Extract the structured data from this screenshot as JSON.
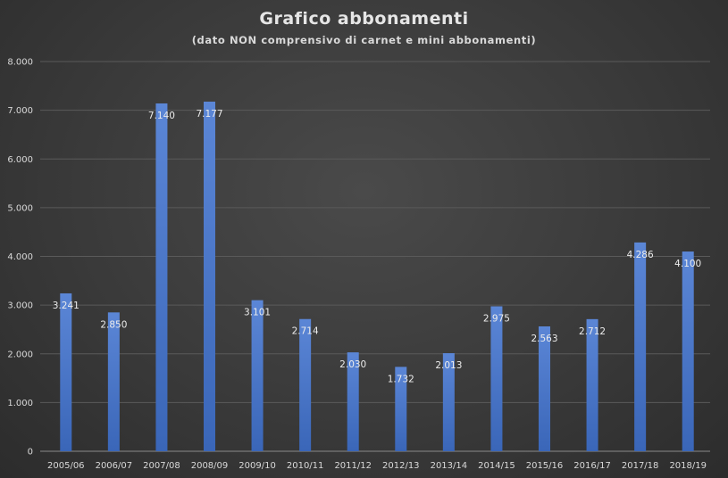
{
  "chart_data": {
    "type": "bar",
    "title": "Grafico abbonamenti",
    "subtitle": "(dato NON comprensivo di carnet e mini abbonamenti)",
    "xlabel": "",
    "ylabel": "",
    "ylim": [
      0,
      8000
    ],
    "y_ticks": [
      {
        "value": 0,
        "label": "0"
      },
      {
        "value": 1000,
        "label": "1.000"
      },
      {
        "value": 2000,
        "label": "2.000"
      },
      {
        "value": 3000,
        "label": "3.000"
      },
      {
        "value": 4000,
        "label": "4.000"
      },
      {
        "value": 5000,
        "label": "5.000"
      },
      {
        "value": 6000,
        "label": "6.000"
      },
      {
        "value": 7000,
        "label": "7.000"
      },
      {
        "value": 8000,
        "label": "8.000"
      }
    ],
    "grid": true,
    "legend": "none",
    "bar_color": "#4472c4",
    "categories": [
      "2005/06",
      "2006/07",
      "2007/08",
      "2008/09",
      "2009/10",
      "2010/11",
      "2011/12",
      "2012/13",
      "2013/14",
      "2014/15",
      "2015/16",
      "2016/17",
      "2017/18",
      "2018/19"
    ],
    "values": [
      3241,
      2850,
      7140,
      7177,
      3101,
      2714,
      2030,
      1732,
      2013,
      2975,
      2563,
      2712,
      4286,
      4100
    ],
    "data_labels": [
      "3.241",
      "2.850",
      "7.140",
      "7.177",
      "3.101",
      "2.714",
      "2.030",
      "1.732",
      "2.013",
      "2.975",
      "2.563",
      "2.712",
      "4.286",
      "4.100"
    ]
  }
}
